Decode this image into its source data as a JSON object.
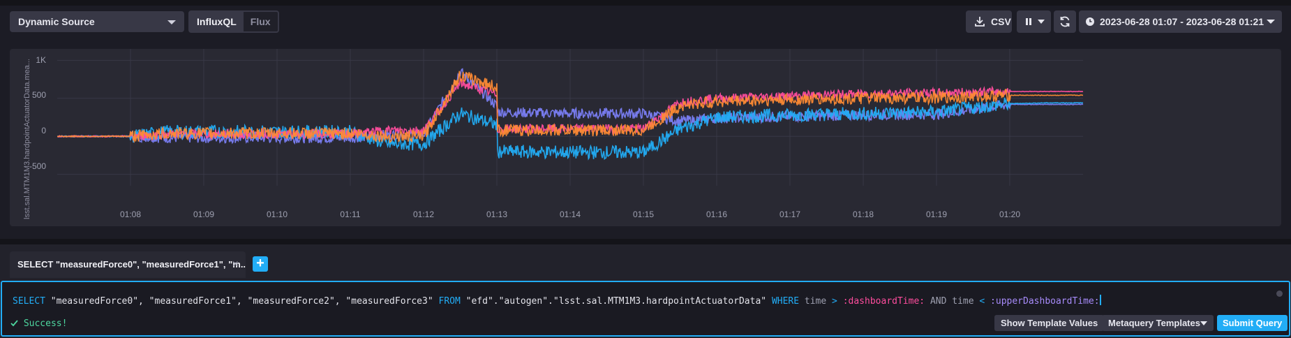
{
  "toolbar": {
    "source_select": "Dynamic Source",
    "lang_options": [
      "InfluxQL",
      "Flux"
    ],
    "lang_active": "InfluxQL",
    "csv_label": "CSV",
    "time_range": "2023-06-28 01:07 - 2023-06-28 01:21"
  },
  "graph": {
    "ylabel": "lsst.sal.MTM1M3.hardpointActuatorData.mea...",
    "colors": {
      "measuredForce0": "#22adf6",
      "measuredForce1": "#ff4d9e",
      "measuredForce2": "#ff8b34",
      "measuredForce3": "#7a7ef5"
    }
  },
  "chart_data": {
    "type": "line",
    "ylabel": "lsst.sal.MTM1M3.hardpointActuatorData.mea...",
    "xlabel": "",
    "y_ticks": [
      "1K",
      "500",
      "0",
      "-500"
    ],
    "x_ticks": [
      "01:08",
      "01:09",
      "01:10",
      "01:11",
      "01:12",
      "01:13",
      "01:14",
      "01:15",
      "01:16",
      "01:17",
      "01:18",
      "01:19",
      "01:20"
    ],
    "ylim": [
      -650,
      1150
    ],
    "grid": true,
    "x": [
      "01:07",
      "01:08",
      "01:08",
      "01:09",
      "01:10",
      "01:11",
      "01:11",
      "01:12",
      "01:12",
      "01:12",
      "01:13",
      "01:14",
      "01:15",
      "01:15",
      "01:16",
      "01:17",
      "01:18",
      "01:19",
      "01:20",
      "01:20",
      "01:21"
    ],
    "series": [
      {
        "name": "measuredForce0",
        "values": [
          0,
          0,
          60,
          60,
          60,
          60,
          -100,
          -100,
          300,
          150,
          -200,
          -210,
          -210,
          100,
          250,
          280,
          300,
          320,
          430,
          440,
          440
        ]
      },
      {
        "name": "measuredForce1",
        "values": [
          0,
          0,
          30,
          30,
          30,
          30,
          80,
          80,
          700,
          550,
          100,
          100,
          100,
          450,
          500,
          530,
          560,
          570,
          590,
          590,
          590
        ]
      },
      {
        "name": "measuredForce2",
        "values": [
          0,
          0,
          40,
          40,
          40,
          40,
          0,
          0,
          800,
          650,
          80,
          80,
          80,
          400,
          460,
          480,
          500,
          510,
          540,
          540,
          540
        ]
      },
      {
        "name": "measuredForce3",
        "values": [
          0,
          0,
          -20,
          -20,
          -20,
          -20,
          20,
          20,
          850,
          400,
          320,
          300,
          300,
          200,
          240,
          260,
          280,
          290,
          420,
          420,
          420
        ]
      }
    ]
  },
  "tab": {
    "label": "SELECT \"measuredForce0\", \"measuredForce1\", \"m...",
    "close": "×",
    "add": "+"
  },
  "editor": {
    "query": {
      "select": "SELECT",
      "fields": "\"measuredForce0\", \"measuredForce1\", \"measuredForce2\", \"measuredForce3\"",
      "from": "FROM",
      "source": "\"efd\".\"autogen\".\"lsst.sal.MTM1M3.hardpointActuatorData\"",
      "where": "WHERE",
      "time1": "time",
      "gt": ">",
      "dash_time": ":dashboardTime:",
      "and": "AND",
      "time2": "time",
      "lt": "<",
      "upper_time": ":upperDashboardTime:"
    },
    "status": "Success!",
    "show_template_values": "Show Template Values",
    "metaquery_templates": "Metaquery Templates",
    "submit_query": "Submit Query"
  }
}
